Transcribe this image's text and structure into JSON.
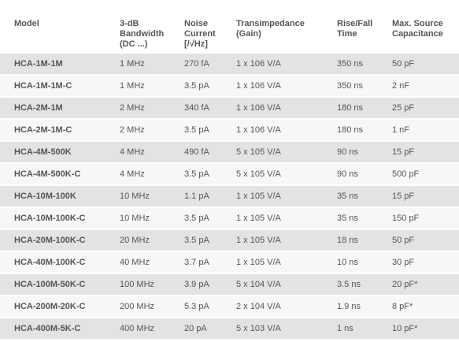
{
  "table": {
    "header": [
      [
        "Model"
      ],
      [
        "3-dB",
        "Bandwidth",
        "(DC ...)"
      ],
      [
        "Noise",
        "Current",
        "[/√Hz]"
      ],
      [
        "Transimpedance",
        "(Gain)"
      ],
      [
        "Rise/Fall",
        "Time"
      ],
      [
        "Max. Source",
        "Capacitance"
      ]
    ],
    "rows": [
      [
        "HCA-1M-1M",
        "1 MHz",
        "270 fA",
        "1 x 106 V/A",
        "350 ns",
        "50 pF"
      ],
      [
        "HCA-1M-1M-C",
        "1 MHz",
        "3.5 pA",
        "1 x 106 V/A",
        "350 ns",
        "2 nF"
      ],
      [
        "HCA-2M-1M",
        "2 MHz",
        "340 fA",
        "1 x 106 V/A",
        "180 ns",
        "25 pF"
      ],
      [
        "HCA-2M-1M-C",
        "2 MHz",
        "3.5 pA",
        "1 x 106 V/A",
        "180 ns",
        "1 nF"
      ],
      [
        "HCA-4M-500K",
        "4 MHz",
        "490 fA",
        "5 x 105 V/A",
        "90 ns",
        "15 pF"
      ],
      [
        "HCA-4M-500K-C",
        "4 MHz",
        "3.5 pA",
        "5 x 105 V/A",
        "90 ns",
        "500 pF"
      ],
      [
        "HCA-10M-100K",
        "10 MHz",
        "1.1 pA",
        "1 x 105 V/A",
        "35 ns",
        "15 pF"
      ],
      [
        "HCA-10M-100K-C",
        "10 MHz",
        "3.5 pA",
        "1 x 105 V/A",
        "35 ns",
        "150 pF"
      ],
      [
        "HCA-20M-100K-C",
        "20 MHz",
        "3.5 pA",
        "1 x 105 V/A",
        "18 ns",
        "50 pF"
      ],
      [
        "HCA-40M-100K-C",
        "40 MHz",
        "3.7 pA",
        "1 x 105 V/A",
        "10 ns",
        "30 pF"
      ],
      [
        "HCA-100M-50K-C",
        "100 MHz",
        "3.9 pA",
        "5 x 104 V/A",
        "3.5 ns",
        "20 pF*"
      ],
      [
        "HCA-200M-20K-C",
        "200 MHz",
        "5.3 pA",
        "2 x 104 V/A",
        "1.9 ns",
        "8 pF*"
      ],
      [
        "HCA-400M-5K-C",
        "400 MHz",
        "20 pA",
        "5 x 103 V/A",
        "1 ns",
        "10 pF*"
      ]
    ]
  }
}
